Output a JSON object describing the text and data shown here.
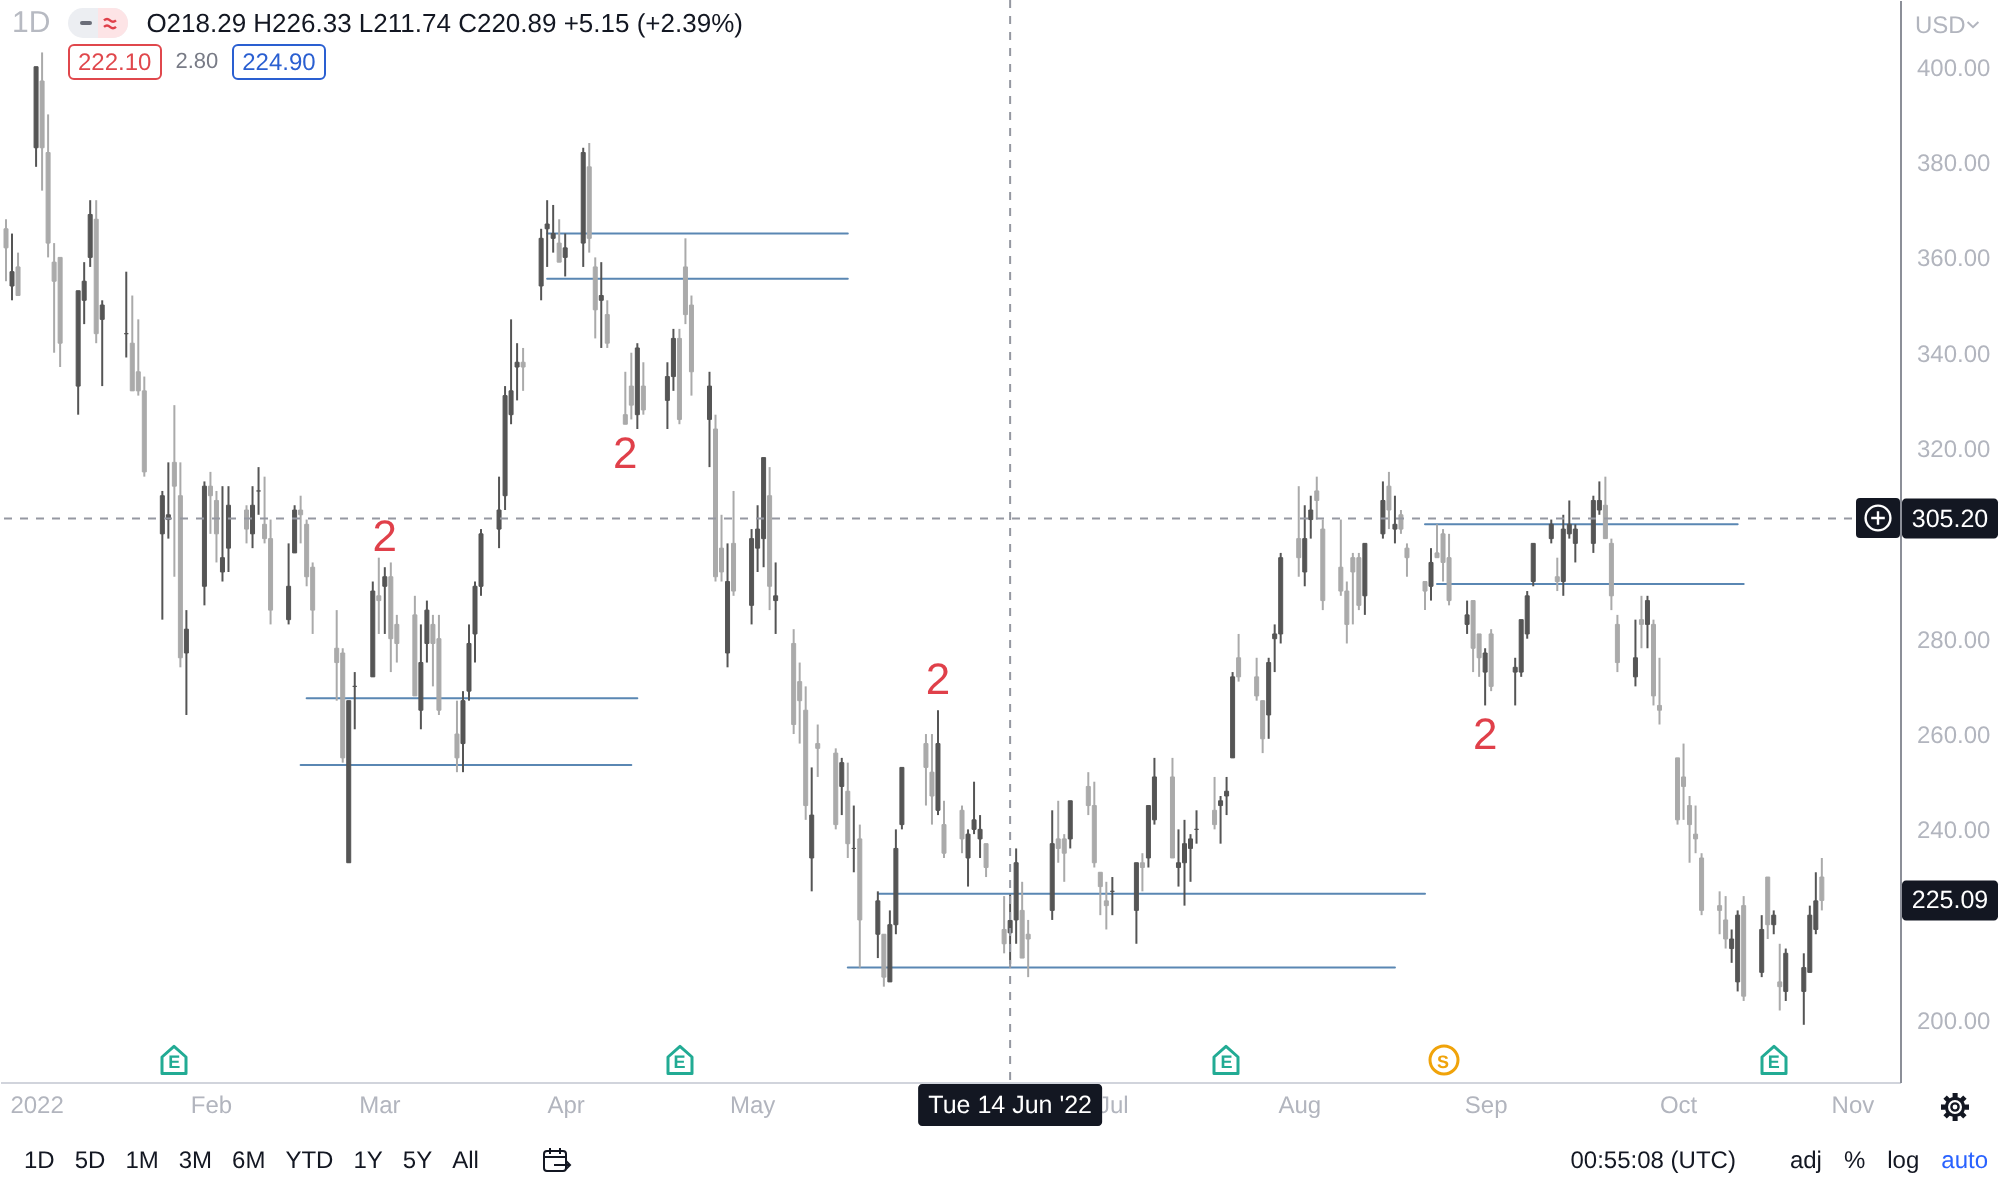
{
  "chart_data": {
    "type": "candlestick",
    "title": "1D",
    "subtitle": "O218.29 H226.33 L211.74 C220.89 +5.15 (+2.39%)",
    "ylabel": "USD",
    "grid": false,
    "xlim": [
      "2021-12-28",
      "2022-11-09"
    ],
    "ylim": [
      187,
      414
    ],
    "xticks": [
      {
        "value": "2022-01-03",
        "label": "2022"
      },
      {
        "value": "2022-02-01",
        "label": "Feb"
      },
      {
        "value": "2022-03-01",
        "label": "Mar"
      },
      {
        "value": "2022-04-01",
        "label": "Apr"
      },
      {
        "value": "2022-05-02",
        "label": "May"
      },
      {
        "value": "2022-07-01",
        "label": "Jul"
      },
      {
        "value": "2022-08-01",
        "label": "Aug"
      },
      {
        "value": "2022-09-01",
        "label": "Sep"
      },
      {
        "value": "2022-10-03",
        "label": "Oct"
      },
      {
        "value": "2022-11-01",
        "label": "Nov"
      }
    ],
    "yticks": [
      {
        "value": 200,
        "label": "200.00"
      },
      {
        "value": 240,
        "label": "240.00"
      },
      {
        "value": 260,
        "label": "260.00"
      },
      {
        "value": 280,
        "label": "280.00"
      },
      {
        "value": 320,
        "label": "320.00"
      },
      {
        "value": 340,
        "label": "340.00"
      },
      {
        "value": 360,
        "label": "360.00"
      },
      {
        "value": 380,
        "label": "380.00"
      },
      {
        "value": 400,
        "label": "400.00"
      }
    ],
    "x": [
      "2021-12-29",
      "2021-12-30",
      "2021-12-31",
      "2022-01-03",
      "2022-01-04",
      "2022-01-05",
      "2022-01-06",
      "2022-01-07",
      "2022-01-10",
      "2022-01-11",
      "2022-01-12",
      "2022-01-13",
      "2022-01-14",
      "2022-01-18",
      "2022-01-19",
      "2022-01-20",
      "2022-01-21",
      "2022-01-24",
      "2022-01-25",
      "2022-01-26",
      "2022-01-27",
      "2022-01-28",
      "2022-01-31",
      "2022-02-01",
      "2022-02-02",
      "2022-02-03",
      "2022-02-04",
      "2022-02-07",
      "2022-02-08",
      "2022-02-09",
      "2022-02-10",
      "2022-02-11",
      "2022-02-14",
      "2022-02-15",
      "2022-02-16",
      "2022-02-17",
      "2022-02-18",
      "2022-02-22",
      "2022-02-23",
      "2022-02-24",
      "2022-02-25",
      "2022-02-28",
      "2022-03-01",
      "2022-03-02",
      "2022-03-03",
      "2022-03-04",
      "2022-03-07",
      "2022-03-08",
      "2022-03-09",
      "2022-03-10",
      "2022-03-11",
      "2022-03-14",
      "2022-03-15",
      "2022-03-16",
      "2022-03-17",
      "2022-03-18",
      "2022-03-21",
      "2022-03-22",
      "2022-03-23",
      "2022-03-24",
      "2022-03-25",
      "2022-03-28",
      "2022-03-29",
      "2022-03-30",
      "2022-03-31",
      "2022-04-01",
      "2022-04-04",
      "2022-04-05",
      "2022-04-06",
      "2022-04-07",
      "2022-04-08",
      "2022-04-11",
      "2022-04-12",
      "2022-04-13",
      "2022-04-14",
      "2022-04-18",
      "2022-04-19",
      "2022-04-20",
      "2022-04-21",
      "2022-04-22",
      "2022-04-25",
      "2022-04-26",
      "2022-04-27",
      "2022-04-28",
      "2022-04-29",
      "2022-05-02",
      "2022-05-03",
      "2022-05-04",
      "2022-05-05",
      "2022-05-06",
      "2022-05-09",
      "2022-05-10",
      "2022-05-11",
      "2022-05-12",
      "2022-05-13",
      "2022-05-16",
      "2022-05-17",
      "2022-05-18",
      "2022-05-19",
      "2022-05-20",
      "2022-05-23",
      "2022-05-24",
      "2022-05-25",
      "2022-05-26",
      "2022-05-27",
      "2022-05-31",
      "2022-06-01",
      "2022-06-02",
      "2022-06-03",
      "2022-06-06",
      "2022-06-07",
      "2022-06-08",
      "2022-06-09",
      "2022-06-10",
      "2022-06-13",
      "2022-06-14",
      "2022-06-15",
      "2022-06-16",
      "2022-06-17",
      "2022-06-21",
      "2022-06-22",
      "2022-06-23",
      "2022-06-24",
      "2022-06-27",
      "2022-06-28",
      "2022-06-29",
      "2022-06-30",
      "2022-07-01",
      "2022-07-05",
      "2022-07-06",
      "2022-07-07",
      "2022-07-08",
      "2022-07-11",
      "2022-07-12",
      "2022-07-13",
      "2022-07-14",
      "2022-07-15",
      "2022-07-18",
      "2022-07-19",
      "2022-07-20",
      "2022-07-21",
      "2022-07-22",
      "2022-07-25",
      "2022-07-26",
      "2022-07-27",
      "2022-07-28",
      "2022-07-29",
      "2022-08-01",
      "2022-08-02",
      "2022-08-03",
      "2022-08-04",
      "2022-08-05",
      "2022-08-08",
      "2022-08-09",
      "2022-08-10",
      "2022-08-11",
      "2022-08-12",
      "2022-08-15",
      "2022-08-16",
      "2022-08-17",
      "2022-08-18",
      "2022-08-19",
      "2022-08-22",
      "2022-08-23",
      "2022-08-24",
      "2022-08-25",
      "2022-08-26",
      "2022-08-29",
      "2022-08-30",
      "2022-08-31",
      "2022-09-01",
      "2022-09-02",
      "2022-09-06",
      "2022-09-07",
      "2022-09-08",
      "2022-09-09",
      "2022-09-12",
      "2022-09-13",
      "2022-09-14",
      "2022-09-15",
      "2022-09-16",
      "2022-09-19",
      "2022-09-20",
      "2022-09-21",
      "2022-09-22",
      "2022-09-23",
      "2022-09-26",
      "2022-09-27",
      "2022-09-28",
      "2022-09-29",
      "2022-09-30",
      "2022-10-03",
      "2022-10-04",
      "2022-10-05",
      "2022-10-06",
      "2022-10-07",
      "2022-10-10",
      "2022-10-11",
      "2022-10-12",
      "2022-10-13",
      "2022-10-14",
      "2022-10-17",
      "2022-10-18",
      "2022-10-19",
      "2022-10-20",
      "2022-10-21",
      "2022-10-24",
      "2022-10-25",
      "2022-10-26",
      "2022-10-27"
    ],
    "ohlc": [
      [
        366,
        368,
        355,
        362
      ],
      [
        354,
        365,
        351,
        357
      ],
      [
        358,
        361,
        352,
        352
      ],
      [
        383,
        400,
        379,
        400
      ],
      [
        397,
        403,
        374,
        383
      ],
      [
        382,
        390,
        360,
        363
      ],
      [
        359,
        363,
        340,
        355
      ],
      [
        360,
        360,
        337,
        342
      ],
      [
        333,
        353,
        327,
        353
      ],
      [
        351,
        359,
        346,
        355
      ],
      [
        360,
        372,
        358,
        369
      ],
      [
        368,
        372,
        342,
        344
      ],
      [
        347,
        351,
        333,
        350
      ],
      [
        344,
        357,
        339,
        344
      ],
      [
        342,
        352,
        332,
        332
      ],
      [
        336,
        347,
        331,
        332
      ],
      [
        332,
        335,
        314,
        315
      ],
      [
        302,
        311,
        284,
        310
      ],
      [
        305,
        317,
        301,
        306
      ],
      [
        317,
        329,
        293,
        312
      ],
      [
        310,
        317,
        274,
        276
      ],
      [
        277,
        286,
        264,
        282
      ],
      [
        291,
        313,
        287,
        312
      ],
      [
        312,
        315,
        302,
        310
      ],
      [
        309,
        311,
        296,
        302
      ],
      [
        294,
        312,
        292,
        297
      ],
      [
        299,
        312,
        294,
        308
      ],
      [
        307,
        308,
        300,
        303
      ],
      [
        302,
        312,
        299,
        308
      ],
      [
        311,
        316,
        306,
        311
      ],
      [
        304,
        314,
        300,
        301
      ],
      [
        301,
        305,
        283,
        286
      ],
      [
        284,
        300,
        283,
        291
      ],
      [
        298,
        308,
        298,
        307
      ],
      [
        307,
        310,
        300,
        306
      ],
      [
        304,
        305,
        291,
        293
      ],
      [
        295,
        296,
        281,
        286
      ],
      [
        278,
        286,
        267,
        275
      ],
      [
        277,
        278,
        254,
        255
      ],
      [
        233,
        267,
        233,
        267
      ],
      [
        270,
        273,
        261,
        270
      ],
      [
        272,
        292,
        272,
        290
      ],
      [
        289,
        297,
        281,
        288
      ],
      [
        291,
        295,
        281,
        293
      ],
      [
        293,
        296,
        273,
        280
      ],
      [
        283,
        285,
        275,
        279
      ],
      [
        285,
        289,
        268,
        268
      ],
      [
        265,
        283,
        261,
        275
      ],
      [
        279,
        288,
        275,
        286
      ],
      [
        283,
        285,
        270,
        279
      ],
      [
        280,
        285,
        264,
        265
      ],
      [
        260,
        267,
        252,
        255
      ],
      [
        258,
        269,
        252,
        267
      ],
      [
        269,
        283,
        267,
        279
      ],
      [
        281,
        292,
        275,
        291
      ],
      [
        291,
        303,
        289,
        302
      ],
      [
        303,
        314,
        299,
        307
      ],
      [
        310,
        333,
        307,
        331
      ],
      [
        327,
        347,
        325,
        332
      ],
      [
        337,
        342,
        330,
        338
      ],
      [
        338,
        341,
        332,
        337
      ],
      [
        354,
        366,
        351,
        364
      ],
      [
        366,
        372,
        358,
        367
      ],
      [
        364,
        371,
        361,
        365
      ],
      [
        363,
        368,
        359,
        359
      ],
      [
        360,
        365,
        356,
        362
      ],
      [
        363,
        383,
        358,
        382
      ],
      [
        379,
        384,
        361,
        364
      ],
      [
        358,
        360,
        343,
        349
      ],
      [
        351,
        359,
        341,
        352
      ],
      [
        348,
        351,
        341,
        342
      ],
      [
        327,
        336,
        325,
        325
      ],
      [
        333,
        340,
        326,
        329
      ],
      [
        327,
        342,
        324,
        341
      ],
      [
        333,
        338,
        327,
        328
      ],
      [
        330,
        338,
        324,
        335
      ],
      [
        335,
        345,
        332,
        343
      ],
      [
        343,
        345,
        325,
        326
      ],
      [
        358,
        364,
        346,
        348
      ],
      [
        350,
        352,
        331,
        336
      ],
      [
        326,
        336,
        316,
        333
      ],
      [
        324,
        327,
        292,
        293
      ],
      [
        299,
        306,
        292,
        294
      ],
      [
        277,
        300,
        274,
        292
      ],
      [
        300,
        311,
        289,
        290
      ],
      [
        287,
        303,
        283,
        301
      ],
      [
        299,
        308,
        294,
        303
      ],
      [
        301,
        318,
        295,
        318
      ],
      [
        310,
        316,
        286,
        291
      ],
      [
        288,
        296,
        281,
        289
      ],
      [
        279,
        282,
        260,
        262
      ],
      [
        271,
        275,
        258,
        267
      ],
      [
        265,
        270,
        242,
        245
      ],
      [
        234,
        253,
        227,
        243
      ],
      [
        258,
        262,
        251,
        257
      ],
      [
        256,
        257,
        240,
        241
      ],
      [
        249,
        255,
        243,
        254
      ],
      [
        248,
        254,
        234,
        237
      ],
      [
        236,
        245,
        231,
        236
      ],
      [
        238,
        241,
        211,
        221
      ],
      [
        218,
        227,
        213,
        225
      ],
      [
        218,
        218,
        207,
        209
      ],
      [
        208,
        223,
        208,
        220
      ],
      [
        220,
        240,
        218,
        236
      ],
      [
        241,
        253,
        240,
        253
      ],
      [
        258,
        260,
        245,
        253
      ],
      [
        252,
        260,
        241,
        247
      ],
      [
        244,
        265,
        243,
        258
      ],
      [
        241,
        246,
        234,
        235
      ],
      [
        244,
        245,
        235,
        238
      ],
      [
        234,
        240,
        228,
        239
      ],
      [
        240,
        250,
        239,
        242
      ],
      [
        238,
        243,
        234,
        240
      ],
      [
        237,
        237,
        230,
        232
      ],
      [
        219,
        226,
        214,
        216
      ],
      [
        218.29,
        226.33,
        211.74,
        220.89
      ],
      [
        221,
        236,
        216,
        233
      ],
      [
        223,
        229,
        213,
        213
      ],
      [
        218,
        221,
        209,
        217
      ],
      [
        223,
        244,
        221,
        237
      ],
      [
        238,
        246,
        233,
        236
      ],
      [
        238,
        239,
        229,
        235
      ],
      [
        238,
        246,
        236,
        246
      ],
      [
        249,
        252,
        243,
        245
      ],
      [
        245,
        250,
        232,
        233
      ],
      [
        231,
        231,
        222,
        228
      ],
      [
        225,
        229,
        219,
        224
      ],
      [
        227,
        230,
        222,
        227
      ],
      [
        223,
        233,
        216,
        233
      ],
      [
        233,
        235,
        227,
        232
      ],
      [
        234,
        245,
        232,
        245
      ],
      [
        242,
        255,
        241,
        251
      ],
      [
        251,
        255,
        234,
        234
      ],
      [
        232,
        240,
        228,
        233
      ],
      [
        233,
        242,
        224,
        237
      ],
      [
        236,
        239,
        229,
        238
      ],
      [
        240,
        244,
        237,
        240
      ],
      [
        244,
        251,
        240,
        241
      ],
      [
        245,
        247,
        237,
        246
      ],
      [
        247,
        251,
        243,
        248
      ],
      [
        255,
        273,
        255,
        272
      ],
      [
        276,
        281,
        271,
        272
      ],
      [
        272,
        276,
        267,
        268
      ],
      [
        267,
        267,
        256,
        259
      ],
      [
        264,
        276,
        259,
        275
      ],
      [
        280,
        283,
        273,
        281
      ],
      [
        281,
        298,
        279,
        297
      ],
      [
        301,
        312,
        293,
        297
      ],
      [
        294,
        308,
        291,
        301
      ],
      [
        305,
        310,
        301,
        307
      ],
      [
        311,
        314,
        305,
        309
      ],
      [
        303,
        305,
        286,
        288
      ],
      [
        295,
        305,
        289,
        290
      ],
      [
        290,
        292,
        279,
        283
      ],
      [
        297,
        298,
        283,
        294
      ],
      [
        297,
        298,
        286,
        287
      ],
      [
        289,
        300,
        285,
        300
      ],
      [
        302,
        313,
        301,
        309
      ],
      [
        312,
        315,
        303,
        307
      ],
      [
        303,
        310,
        300,
        304
      ],
      [
        306,
        307,
        302,
        303
      ],
      [
        299,
        300,
        293,
        297
      ],
      [
        292,
        292,
        286,
        290
      ],
      [
        291,
        299,
        288,
        296
      ],
      [
        298,
        304,
        297,
        297
      ],
      [
        302,
        303,
        292,
        296
      ],
      [
        297,
        302,
        287,
        288
      ],
      [
        283,
        288,
        281,
        285
      ],
      [
        288,
        288,
        273,
        278
      ],
      [
        281,
        281,
        272,
        276
      ],
      [
        273,
        278,
        266,
        277
      ],
      [
        281,
        282,
        269,
        270
      ],
      [
        273,
        276,
        266,
        274
      ],
      [
        273,
        284,
        272,
        284
      ],
      [
        281,
        290,
        280,
        289
      ],
      [
        292,
        300,
        291,
        300
      ],
      [
        301,
        305,
        300,
        304
      ],
      [
        293,
        297,
        290,
        292
      ],
      [
        292,
        306,
        289,
        303
      ],
      [
        302,
        309,
        301,
        304
      ],
      [
        300,
        304,
        296,
        303
      ],
      [
        300,
        310,
        298,
        309
      ],
      [
        307,
        313,
        306,
        309
      ],
      [
        308,
        314,
        301,
        301
      ],
      [
        300,
        301,
        286,
        289
      ],
      [
        283,
        285,
        273,
        275
      ],
      [
        272,
        284,
        270,
        276
      ],
      [
        284,
        289,
        278,
        283
      ],
      [
        283,
        289,
        278,
        288
      ],
      [
        283,
        284,
        266,
        268
      ],
      [
        266,
        276,
        262,
        265
      ],
      [
        255,
        255,
        241,
        242
      ],
      [
        251,
        258,
        242,
        249
      ],
      [
        245,
        247,
        233,
        241
      ],
      [
        239,
        245,
        235,
        238
      ],
      [
        234,
        235,
        222,
        223
      ],
      [
        224,
        227,
        218,
        223
      ],
      [
        221,
        226,
        215,
        217
      ],
      [
        215,
        219,
        212,
        217
      ],
      [
        208,
        223,
        206,
        222
      ],
      [
        224,
        226,
        204,
        205
      ],
      [
        210,
        222,
        209,
        219
      ],
      [
        230,
        230,
        217,
        220
      ],
      [
        220,
        223,
        218,
        222
      ],
      [
        208,
        216,
        202,
        207
      ],
      [
        206,
        215,
        204,
        214
      ],
      [
        206,
        214,
        199,
        211
      ],
      [
        210,
        224,
        210,
        222
      ],
      [
        219,
        231,
        218,
        225
      ],
      [
        230,
        234,
        223,
        225.09
      ]
    ],
    "colors": [
      "#aaaaaa",
      "#555555",
      "#aaaaaa",
      "#555555",
      "#aaaaaa",
      "#aaaaaa",
      "#aaaaaa",
      "#aaaaaa",
      "#555555",
      "#555555",
      "#555555",
      "#aaaaaa",
      "#555555",
      "#555555",
      "#aaaaaa",
      "#aaaaaa",
      "#aaaaaa",
      "#555555",
      "#555555",
      "#aaaaaa",
      "#aaaaaa",
      "#555555",
      "#555555",
      "#aaaaaa",
      "#aaaaaa",
      "#555555",
      "#555555",
      "#aaaaaa",
      "#555555",
      "#555555",
      "#aaaaaa",
      "#aaaaaa",
      "#555555",
      "#555555",
      "#aaaaaa",
      "#aaaaaa",
      "#aaaaaa",
      "#aaaaaa",
      "#aaaaaa",
      "#555555",
      "#555555",
      "#555555",
      "#aaaaaa",
      "#555555",
      "#aaaaaa",
      "#aaaaaa",
      "#aaaaaa",
      "#555555",
      "#555555",
      "#aaaaaa",
      "#aaaaaa",
      "#aaaaaa",
      "#555555",
      "#555555",
      "#555555",
      "#555555",
      "#555555",
      "#555555",
      "#555555",
      "#555555",
      "#aaaaaa",
      "#555555",
      "#555555",
      "#555555",
      "#aaaaaa",
      "#555555",
      "#555555",
      "#aaaaaa",
      "#aaaaaa",
      "#555555",
      "#aaaaaa",
      "#aaaaaa",
      "#aaaaaa",
      "#555555",
      "#aaaaaa",
      "#555555",
      "#555555",
      "#aaaaaa",
      "#aaaaaa",
      "#aaaaaa",
      "#555555",
      "#aaaaaa",
      "#aaaaaa",
      "#555555",
      "#aaaaaa",
      "#555555",
      "#555555",
      "#555555",
      "#aaaaaa",
      "#555555",
      "#aaaaaa",
      "#aaaaaa",
      "#aaaaaa",
      "#555555",
      "#aaaaaa",
      "#aaaaaa",
      "#555555",
      "#aaaaaa",
      "#555555",
      "#aaaaaa",
      "#555555",
      "#aaaaaa",
      "#555555",
      "#555555",
      "#555555",
      "#aaaaaa",
      "#aaaaaa",
      "#555555",
      "#aaaaaa",
      "#aaaaaa",
      "#555555",
      "#555555",
      "#555555",
      "#aaaaaa",
      "#aaaaaa",
      "#555555",
      "#555555",
      "#aaaaaa",
      "#aaaaaa",
      "#555555",
      "#aaaaaa",
      "#aaaaaa",
      "#555555",
      "#aaaaaa",
      "#aaaaaa",
      "#aaaaaa",
      "#aaaaaa",
      "#555555",
      "#555555",
      "#aaaaaa",
      "#555555",
      "#555555",
      "#aaaaaa",
      "#555555",
      "#555555",
      "#555555",
      "#555555",
      "#aaaaaa",
      "#555555",
      "#555555",
      "#555555",
      "#aaaaaa",
      "#aaaaaa",
      "#aaaaaa",
      "#555555",
      "#555555",
      "#555555",
      "#aaaaaa",
      "#555555",
      "#555555",
      "#aaaaaa",
      "#aaaaaa",
      "#aaaaaa",
      "#aaaaaa",
      "#aaaaaa",
      "#aaaaaa",
      "#555555",
      "#555555",
      "#aaaaaa",
      "#555555",
      "#aaaaaa",
      "#aaaaaa",
      "#aaaaaa",
      "#555555",
      "#aaaaaa",
      "#aaaaaa",
      "#aaaaaa",
      "#555555",
      "#aaaaaa",
      "#aaaaaa",
      "#555555",
      "#aaaaaa",
      "#555555",
      "#555555",
      "#555555",
      "#555555",
      "#555555",
      "#aaaaaa",
      "#555555",
      "#555555",
      "#555555",
      "#555555",
      "#555555",
      "#aaaaaa",
      "#aaaaaa",
      "#aaaaaa",
      "#555555",
      "#aaaaaa",
      "#555555",
      "#aaaaaa",
      "#aaaaaa",
      "#aaaaaa",
      "#aaaaaa",
      "#aaaaaa",
      "#aaaaaa",
      "#aaaaaa",
      "#aaaaaa",
      "#aaaaaa",
      "#555555",
      "#555555",
      "#aaaaaa",
      "#555555",
      "#aaaaaa",
      "#555555",
      "#aaaaaa",
      "#555555",
      "#555555",
      "#555555",
      "#555555",
      "#aaaaaa"
    ],
    "series": [
      {
        "type": "line",
        "x": [
          "2022-02-17",
          "2022-04-13"
        ],
        "values": [
          267.5,
          267.5
        ],
        "color": "#5a87b3"
      },
      {
        "type": "line",
        "x": [
          "2022-02-16",
          "2022-04-12"
        ],
        "values": [
          253.5,
          253.5
        ],
        "color": "#5a87b3"
      },
      {
        "type": "line",
        "x": [
          "2022-03-29",
          "2022-05-18"
        ],
        "values": [
          365,
          365
        ],
        "color": "#5a87b3"
      },
      {
        "type": "line",
        "x": [
          "2022-03-29",
          "2022-05-18"
        ],
        "values": [
          355.5,
          355.5
        ],
        "color": "#5a87b3"
      },
      {
        "type": "line",
        "x": [
          "2022-05-23",
          "2022-08-22"
        ],
        "values": [
          226.5,
          226.5
        ],
        "color": "#5a87b3"
      },
      {
        "type": "line",
        "x": [
          "2022-05-18",
          "2022-08-17"
        ],
        "values": [
          211,
          211
        ],
        "color": "#5a87b3"
      },
      {
        "type": "line",
        "x": [
          "2022-08-22",
          "2022-10-13"
        ],
        "values": [
          304,
          304
        ],
        "color": "#5a87b3"
      },
      {
        "type": "line",
        "x": [
          "2022-08-24",
          "2022-10-14"
        ],
        "values": [
          291.5,
          291.5
        ],
        "color": "#5a87b3"
      }
    ],
    "ref_lines": [
      {
        "axis": "x",
        "value": "2022-06-14",
        "label": "Tue 14 Jun '22",
        "line_style": "dashed",
        "color": "#9598a1"
      },
      {
        "axis": "y",
        "value": 305.2,
        "label": "305.20",
        "line_style": "dashed",
        "color": "#9598a1"
      }
    ],
    "annotations": [
      "222.10",
      "2.80",
      "224.90",
      "1D 5D 1M 3M 6M YTD 1Y 5Y All",
      "00:55:08 (UTC)",
      "adj % log auto",
      "225.09",
      {
        "text": "2",
        "x": "2022-03-02",
        "y": 295
      },
      {
        "text": "2",
        "x": "2022-04-11",
        "y": 325
      },
      {
        "text": "2",
        "x": "2022-06-02",
        "y": 265
      },
      {
        "text": "2",
        "x": "2022-09-01",
        "y": 266
      },
      {
        "text": "E",
        "x": "2022-01-26"
      },
      {
        "text": "E",
        "x": "2022-04-20"
      },
      {
        "text": "E",
        "x": "2022-07-20"
      },
      {
        "text": "S",
        "x": "2022-08-25"
      },
      {
        "text": "E",
        "x": "2022-10-19"
      }
    ]
  }
}
